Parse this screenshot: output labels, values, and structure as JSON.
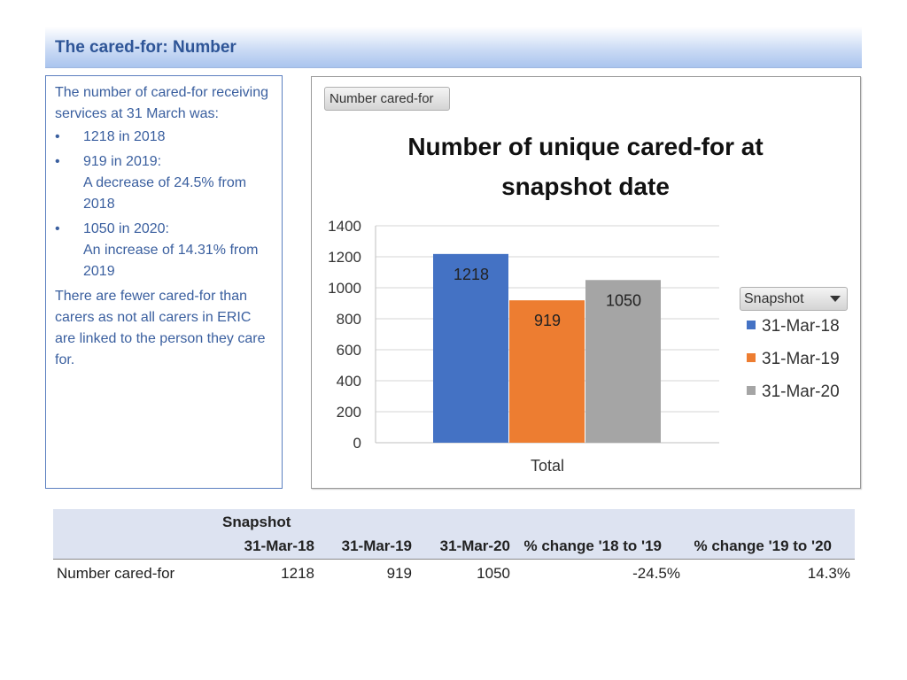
{
  "header": {
    "title": "The cared-for: Number"
  },
  "summary": {
    "intro": "The number of cared-for receiving services at 31 March was:",
    "bullets": [
      {
        "symbol": "•",
        "line1": "1218 in 2018",
        "line2": ""
      },
      {
        "symbol": "•",
        "line1": "919 in 2019:",
        "line2": "A decrease of 24.5% from 2018"
      },
      {
        "symbol": "•",
        "line1": "1050 in 2020:",
        "line2": "An increase of 14.31% from 2019"
      }
    ],
    "note": "There are fewer cared-for than carers as not all carers in ERIC are linked to the person they care for."
  },
  "pivot": {
    "field_button": "Number cared-for",
    "legend_button": "Snapshot"
  },
  "chart_data": {
    "type": "bar",
    "title": "Number of unique cared-for at snapshot date",
    "title_lines": [
      "Number of unique cared-for at",
      "snapshot date"
    ],
    "categories": [
      "Total"
    ],
    "series": [
      {
        "name": "31-Mar-18",
        "values": [
          1218
        ],
        "color": "#4472c4"
      },
      {
        "name": "31-Mar-19",
        "values": [
          919
        ],
        "color": "#ed7d31"
      },
      {
        "name": "31-Mar-20",
        "values": [
          1050
        ],
        "color": "#a5a5a5"
      }
    ],
    "data_labels": [
      "1218",
      "919",
      "1050"
    ],
    "yticks": [
      0,
      200,
      400,
      600,
      800,
      1000,
      1200,
      1400
    ],
    "ylim": [
      0,
      1400
    ],
    "xlabel": "Total",
    "ylabel": "",
    "grid": true,
    "legend": "right"
  },
  "table": {
    "group_header": "Snapshot",
    "columns": [
      "31-Mar-18",
      "31-Mar-19",
      "31-Mar-20",
      "% change '18 to '19",
      "% change '19 to '20"
    ],
    "rows": [
      {
        "label": "Number cared-for",
        "values": [
          "1218",
          "919",
          "1050",
          "-24.5%",
          "14.3%"
        ]
      }
    ]
  }
}
